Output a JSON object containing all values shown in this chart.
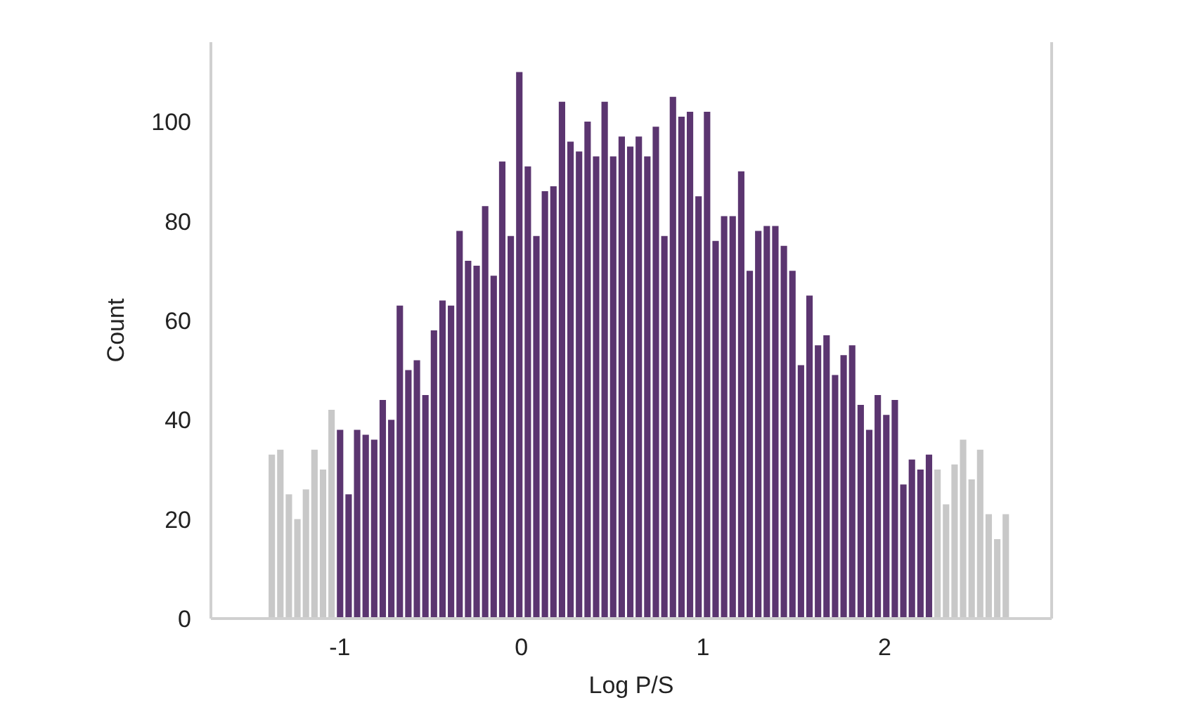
{
  "chart_data": {
    "type": "histogram",
    "xlabel": "Log P/S",
    "ylabel": "Count",
    "bins": [
      -1.4,
      -1.353,
      -1.306,
      -1.259,
      -1.212,
      -1.165,
      -1.118,
      -1.071,
      -1.024,
      -0.977,
      -0.93,
      -0.883,
      -0.836,
      -0.789,
      -0.742,
      -0.695,
      -0.648,
      -0.601,
      -0.554,
      -0.507,
      -0.46,
      -0.413,
      -0.366,
      -0.319,
      -0.272,
      -0.225,
      -0.178,
      -0.131,
      -0.084,
      -0.037,
      0.01,
      0.057,
      0.104,
      0.151,
      0.198,
      0.245,
      0.292,
      0.339,
      0.386,
      0.433,
      0.48,
      0.527,
      0.574,
      0.621,
      0.668,
      0.715,
      0.762,
      0.809,
      0.856,
      0.903,
      0.95,
      0.997,
      1.044,
      1.091,
      1.138,
      1.185,
      1.232,
      1.279,
      1.326,
      1.373,
      1.42,
      1.467,
      1.514,
      1.561,
      1.608,
      1.655,
      1.702,
      1.749,
      1.796,
      1.843,
      1.89,
      1.937,
      1.984,
      2.031,
      2.078,
      2.125,
      2.172,
      2.219,
      2.266,
      2.313,
      2.36,
      2.407,
      2.454,
      2.501,
      2.548,
      2.595,
      2.642,
      2.689
    ],
    "values": [
      33,
      34,
      25,
      20,
      26,
      34,
      30,
      42,
      38,
      25,
      38,
      37,
      36,
      44,
      40,
      63,
      50,
      52,
      45,
      58,
      64,
      63,
      78,
      72,
      71,
      83,
      69,
      92,
      77,
      110,
      91,
      77,
      86,
      87,
      104,
      96,
      94,
      100,
      93,
      104,
      93,
      97,
      95,
      97,
      93,
      99,
      77,
      105,
      101,
      102,
      85,
      102,
      76,
      81,
      81,
      90,
      70,
      78,
      79,
      79,
      75,
      70,
      51,
      65,
      55,
      57,
      49,
      53,
      55,
      43,
      38,
      45,
      41,
      44,
      27,
      32,
      30,
      33,
      30,
      23,
      31,
      36,
      28,
      34,
      21,
      16,
      21
    ],
    "colors": [
      "#c8c8c8",
      "#c8c8c8",
      "#c8c8c8",
      "#c8c8c8",
      "#c8c8c8",
      "#c8c8c8",
      "#c8c8c8",
      "#c8c8c8",
      "#5b3570",
      "#5b3570",
      "#5b3570",
      "#5b3570",
      "#5b3570",
      "#5b3570",
      "#5b3570",
      "#5b3570",
      "#5b3570",
      "#5b3570",
      "#5b3570",
      "#5b3570",
      "#5b3570",
      "#5b3570",
      "#5b3570",
      "#5b3570",
      "#5b3570",
      "#5b3570",
      "#5b3570",
      "#5b3570",
      "#5b3570",
      "#5b3570",
      "#5b3570",
      "#5b3570",
      "#5b3570",
      "#5b3570",
      "#5b3570",
      "#5b3570",
      "#5b3570",
      "#5b3570",
      "#5b3570",
      "#5b3570",
      "#5b3570",
      "#5b3570",
      "#5b3570",
      "#5b3570",
      "#5b3570",
      "#5b3570",
      "#5b3570",
      "#5b3570",
      "#5b3570",
      "#5b3570",
      "#5b3570",
      "#5b3570",
      "#5b3570",
      "#5b3570",
      "#5b3570",
      "#5b3570",
      "#5b3570",
      "#5b3570",
      "#5b3570",
      "#5b3570",
      "#5b3570",
      "#5b3570",
      "#5b3570",
      "#5b3570",
      "#5b3570",
      "#5b3570",
      "#5b3570",
      "#5b3570",
      "#5b3570",
      "#5b3570",
      "#5b3570",
      "#5b3570",
      "#5b3570",
      "#5b3570",
      "#5b3570",
      "#5b3570",
      "#5b3570",
      "#5b3570",
      "#c8c8c8",
      "#c8c8c8",
      "#c8c8c8",
      "#c8c8c8",
      "#c8c8c8",
      "#c8c8c8",
      "#c8c8c8",
      "#c8c8c8",
      "#c8c8c8"
    ],
    "xlim": [
      -1.71,
      2.92
    ],
    "xticks": [
      -1,
      0,
      1,
      2
    ],
    "ylim": [
      0,
      116
    ],
    "yticks": [
      0,
      20,
      40,
      60,
      80,
      100
    ]
  }
}
